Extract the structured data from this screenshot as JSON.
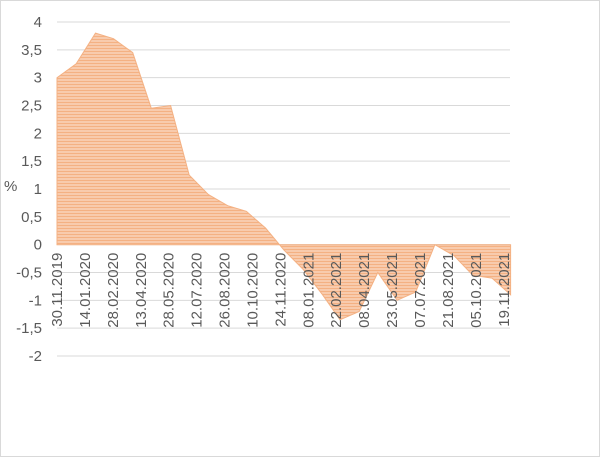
{
  "chart_data": {
    "type": "area",
    "title": "",
    "xlabel": "",
    "ylabel": "%",
    "ylim": [
      -2,
      4
    ],
    "y_ticks": [
      -2,
      -1.5,
      -1,
      -0.5,
      0,
      0.5,
      1,
      1.5,
      2,
      2.5,
      3,
      3.5,
      4
    ],
    "y_tick_labels": [
      "-2",
      "-1,5",
      "-1",
      "-0,5",
      "0",
      "0,5",
      "1",
      "1,5",
      "2",
      "2,5",
      "3",
      "3,5",
      "4"
    ],
    "x_tick_labels": [
      "30.11.2019",
      "14.01.2020",
      "28.02.2020",
      "13.04.2020",
      "28.05.2020",
      "12.07.2020",
      "26.08.2020",
      "10.10.2020",
      "24.11.2020",
      "08.01.2021",
      "22.02.2021",
      "08.04.2021",
      "23.05.2021",
      "07.07.2021",
      "21.08.2021",
      "05.10.2021",
      "19.11.2021"
    ],
    "x_tick_days": [
      0,
      45,
      90,
      135,
      180,
      225,
      270,
      315,
      360,
      405,
      450,
      495,
      540,
      585,
      630,
      675,
      720
    ],
    "x_range_days": [
      0,
      730
    ],
    "grid": "horizontal",
    "legend": "none",
    "fill_color": "#f8cbad",
    "stripe_color": "#f4b183",
    "edge_color": "#f4b183",
    "series": [
      {
        "x": [
          "30.11.2019",
          "31.12.2019",
          "31.01.2020",
          "29.02.2020",
          "31.03.2020",
          "30.04.2020",
          "31.05.2020",
          "30.06.2020",
          "31.07.2020",
          "31.08.2020",
          "30.09.2020",
          "31.10.2020",
          "30.11.2020",
          "31.12.2020",
          "31.01.2021",
          "28.02.2021",
          "31.03.2021",
          "30.04.2021",
          "31.05.2021",
          "30.06.2021",
          "31.07.2021",
          "31.08.2021",
          "30.09.2021",
          "31.10.2021",
          "30.11.2021"
        ],
        "values": [
          3.0,
          3.25,
          3.8,
          3.7,
          3.45,
          2.45,
          2.5,
          1.25,
          0.9,
          0.7,
          0.6,
          0.3,
          -0.1,
          -0.45,
          -0.9,
          -1.35,
          -1.2,
          -0.5,
          -1.0,
          -0.85,
          0.0,
          -0.2,
          -0.55,
          -0.6,
          -0.9
        ]
      }
    ]
  }
}
